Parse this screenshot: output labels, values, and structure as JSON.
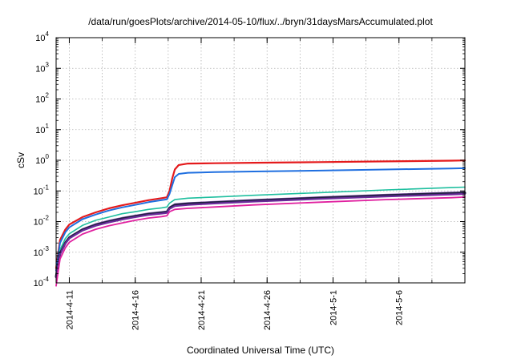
{
  "chart_data": {
    "type": "line",
    "title": "/data/run/goesPlots/archive/2014-05-10/flux/../bryn/31daysMarsAccumulated.plot",
    "xlabel": "Coordinated Universal Time (UTC)",
    "ylabel": "cSv",
    "yscale": "log",
    "ylim": [
      0.0001,
      10000
    ],
    "xlim": [
      0,
      31
    ],
    "grid": true,
    "y_ticks": [
      {
        "value": 0.0001,
        "base": "10",
        "exp": "-4"
      },
      {
        "value": 0.001,
        "base": "10",
        "exp": "-3"
      },
      {
        "value": 0.01,
        "base": "10",
        "exp": "-2"
      },
      {
        "value": 0.1,
        "base": "10",
        "exp": "-1"
      },
      {
        "value": 1,
        "base": "10",
        "exp": "0"
      },
      {
        "value": 10,
        "base": "10",
        "exp": "1"
      },
      {
        "value": 100,
        "base": "10",
        "exp": "2"
      },
      {
        "value": 1000,
        "base": "10",
        "exp": "3"
      },
      {
        "value": 10000,
        "base": "10",
        "exp": "4"
      }
    ],
    "x_ticks": [
      {
        "value": 1,
        "label": "2014-4-11"
      },
      {
        "value": 6,
        "label": "2014-4-16"
      },
      {
        "value": 11,
        "label": "2014-4-21"
      },
      {
        "value": 16,
        "label": "2014-4-26"
      },
      {
        "value": 21,
        "label": "2014-5-1"
      },
      {
        "value": 26,
        "label": "2014-5-6"
      }
    ],
    "x_minor_grid": [
      1,
      3.5,
      6,
      8.5,
      11,
      13.5,
      16,
      18.5,
      21,
      23.5,
      26,
      28.5
    ],
    "series": [
      {
        "color": "#e41a1c",
        "width": 2.2,
        "points": [
          [
            0,
            0.0003
          ],
          [
            0.3,
            0.0025
          ],
          [
            0.7,
            0.0055
          ],
          [
            1,
            0.008
          ],
          [
            2,
            0.014
          ],
          [
            3,
            0.02
          ],
          [
            4,
            0.027
          ],
          [
            5,
            0.034
          ],
          [
            6,
            0.041
          ],
          [
            7,
            0.05
          ],
          [
            8,
            0.058
          ],
          [
            8.4,
            0.062
          ],
          [
            8.6,
            0.1
          ],
          [
            8.8,
            0.25
          ],
          [
            9,
            0.5
          ],
          [
            9.3,
            0.7
          ],
          [
            10,
            0.78
          ],
          [
            12,
            0.8
          ],
          [
            15,
            0.83
          ],
          [
            20,
            0.87
          ],
          [
            25,
            0.92
          ],
          [
            30,
            0.97
          ],
          [
            31,
            0.99
          ]
        ]
      },
      {
        "color": "#1f6fe0",
        "width": 2.0,
        "points": [
          [
            0,
            0.00025
          ],
          [
            0.3,
            0.002
          ],
          [
            0.7,
            0.0045
          ],
          [
            1,
            0.0065
          ],
          [
            2,
            0.012
          ],
          [
            3,
            0.017
          ],
          [
            4,
            0.023
          ],
          [
            5,
            0.029
          ],
          [
            6,
            0.035
          ],
          [
            7,
            0.043
          ],
          [
            8,
            0.05
          ],
          [
            8.4,
            0.053
          ],
          [
            8.6,
            0.08
          ],
          [
            8.8,
            0.15
          ],
          [
            9,
            0.28
          ],
          [
            9.3,
            0.36
          ],
          [
            10,
            0.39
          ],
          [
            12,
            0.41
          ],
          [
            15,
            0.43
          ],
          [
            20,
            0.46
          ],
          [
            25,
            0.5
          ],
          [
            30,
            0.54
          ],
          [
            31,
            0.55
          ]
        ]
      },
      {
        "color": "#1fbf9f",
        "width": 1.6,
        "points": [
          [
            0,
            0.0002
          ],
          [
            0.3,
            0.0012
          ],
          [
            0.7,
            0.0028
          ],
          [
            1,
            0.004
          ],
          [
            2,
            0.0075
          ],
          [
            3,
            0.011
          ],
          [
            4,
            0.014
          ],
          [
            5,
            0.018
          ],
          [
            6,
            0.021
          ],
          [
            7,
            0.025
          ],
          [
            8,
            0.028
          ],
          [
            8.4,
            0.03
          ],
          [
            8.6,
            0.04
          ],
          [
            9,
            0.052
          ],
          [
            10,
            0.058
          ],
          [
            12,
            0.063
          ],
          [
            15,
            0.072
          ],
          [
            20,
            0.088
          ],
          [
            25,
            0.108
          ],
          [
            30,
            0.128
          ],
          [
            31,
            0.133
          ]
        ]
      },
      {
        "color": "#9a5fc0",
        "width": 1.4,
        "points": [
          [
            0,
            0.00018
          ],
          [
            0.3,
            0.001
          ],
          [
            0.7,
            0.0022
          ],
          [
            1,
            0.0032
          ],
          [
            2,
            0.0058
          ],
          [
            3,
            0.0085
          ],
          [
            4,
            0.011
          ],
          [
            5,
            0.0135
          ],
          [
            6,
            0.016
          ],
          [
            7,
            0.019
          ],
          [
            8,
            0.021
          ],
          [
            8.4,
            0.022
          ],
          [
            8.6,
            0.03
          ],
          [
            9,
            0.038
          ],
          [
            10,
            0.041
          ],
          [
            12,
            0.045
          ],
          [
            15,
            0.052
          ],
          [
            20,
            0.064
          ],
          [
            25,
            0.077
          ],
          [
            30,
            0.09
          ],
          [
            31,
            0.093
          ]
        ]
      },
      {
        "color": "#202040",
        "width": 3.0,
        "points": [
          [
            0,
            0.00016
          ],
          [
            0.3,
            0.0009
          ],
          [
            0.7,
            0.002
          ],
          [
            1,
            0.003
          ],
          [
            2,
            0.0054
          ],
          [
            3,
            0.0078
          ],
          [
            4,
            0.01
          ],
          [
            5,
            0.0125
          ],
          [
            6,
            0.015
          ],
          [
            7,
            0.0175
          ],
          [
            8,
            0.0195
          ],
          [
            8.4,
            0.0205
          ],
          [
            8.6,
            0.028
          ],
          [
            9,
            0.035
          ],
          [
            10,
            0.038
          ],
          [
            12,
            0.042
          ],
          [
            15,
            0.048
          ],
          [
            20,
            0.059
          ],
          [
            25,
            0.071
          ],
          [
            30,
            0.083
          ],
          [
            31,
            0.086
          ]
        ]
      },
      {
        "color": "#6a2a9a",
        "width": 2.2,
        "points": [
          [
            0,
            0.00015
          ],
          [
            0.3,
            0.00085
          ],
          [
            0.7,
            0.0019
          ],
          [
            1,
            0.0028
          ],
          [
            2,
            0.0051
          ],
          [
            3,
            0.0073
          ],
          [
            4,
            0.0094
          ],
          [
            5,
            0.0117
          ],
          [
            6,
            0.014
          ],
          [
            7,
            0.0165
          ],
          [
            8,
            0.0183
          ],
          [
            8.4,
            0.0193
          ],
          [
            8.6,
            0.026
          ],
          [
            9,
            0.032
          ],
          [
            10,
            0.035
          ],
          [
            12,
            0.039
          ],
          [
            15,
            0.045
          ],
          [
            20,
            0.055
          ],
          [
            25,
            0.066
          ],
          [
            30,
            0.077
          ],
          [
            31,
            0.08
          ]
        ]
      },
      {
        "color": "#e0209f",
        "width": 1.8,
        "points": [
          [
            0,
            8e-05
          ],
          [
            0.3,
            0.0006
          ],
          [
            0.7,
            0.0014
          ],
          [
            1,
            0.0021
          ],
          [
            2,
            0.0039
          ],
          [
            3,
            0.0056
          ],
          [
            4,
            0.0073
          ],
          [
            5,
            0.009
          ],
          [
            6,
            0.011
          ],
          [
            7,
            0.013
          ],
          [
            8,
            0.0145
          ],
          [
            8.4,
            0.0155
          ],
          [
            8.6,
            0.021
          ],
          [
            9,
            0.025
          ],
          [
            10,
            0.027
          ],
          [
            12,
            0.03
          ],
          [
            15,
            0.035
          ],
          [
            20,
            0.043
          ],
          [
            25,
            0.052
          ],
          [
            30,
            0.06
          ],
          [
            31,
            0.063
          ]
        ]
      }
    ]
  }
}
